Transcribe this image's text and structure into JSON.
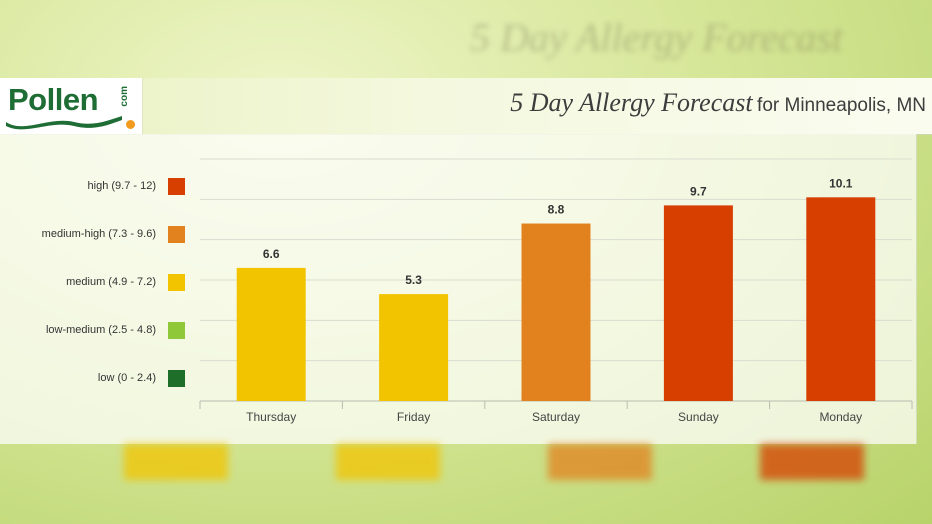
{
  "header": {
    "logo_text": "Pollen",
    "logo_suffix": "com",
    "title": "5 Day Allergy Forecast",
    "title_suffix": "for Minneapolis, MN"
  },
  "legend": [
    {
      "label": "high (9.7 - 12)",
      "color": "#d63f00"
    },
    {
      "label": "medium-high (7.3 - 9.6)",
      "color": "#e2821e"
    },
    {
      "label": "medium (4.9 - 7.2)",
      "color": "#f2c400"
    },
    {
      "label": "low-medium (2.5 - 4.8)",
      "color": "#8fc93a"
    },
    {
      "label": "low (0 - 2.4)",
      "color": "#1e6e2a"
    }
  ],
  "chart_data": {
    "type": "bar",
    "categories": [
      "Thursday",
      "Friday",
      "Saturday",
      "Sunday",
      "Monday"
    ],
    "values": [
      6.6,
      5.3,
      8.8,
      9.7,
      10.1
    ],
    "colors": [
      "#f2c400",
      "#f2c400",
      "#e2821e",
      "#d63f00",
      "#d63f00"
    ],
    "ylim": [
      0,
      12
    ],
    "grid": true
  }
}
